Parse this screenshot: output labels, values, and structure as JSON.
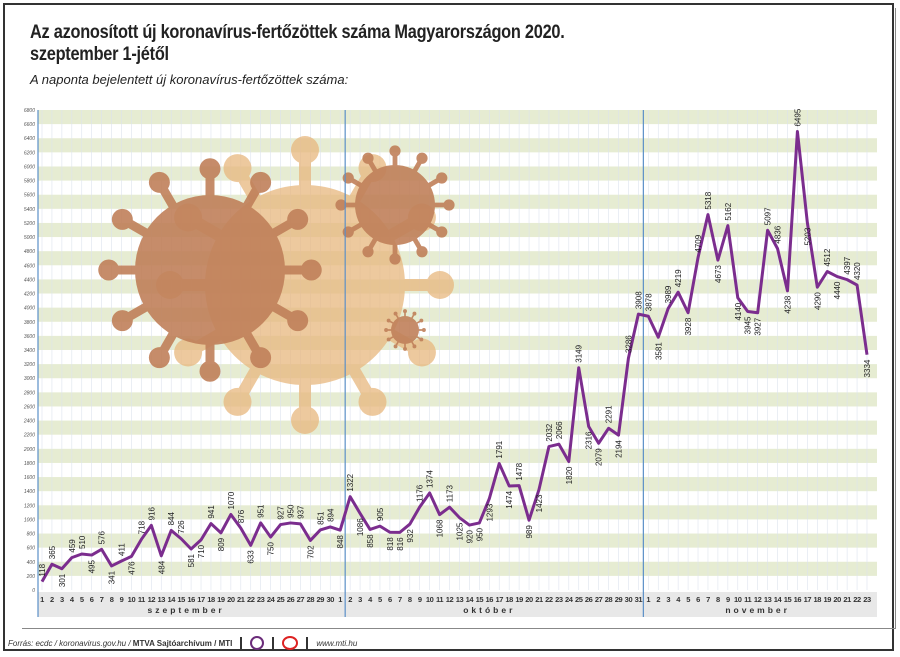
{
  "chart_data": {
    "type": "line",
    "title": "Az azonosított új koronavírus-fertőzöttek száma Magyarországon 2020. szeptember 1-jétől",
    "subtitle": "A naponta bejelentett új koronavírus-fertőzöttek száma:",
    "xlabel": "",
    "ylabel": "",
    "ylim": [
      0,
      6800
    ],
    "ytick_step": 200,
    "grid": true,
    "months": [
      {
        "name": "szeptember",
        "days": 30
      },
      {
        "name": "október",
        "days": 31
      },
      {
        "name": "november",
        "days": 23
      }
    ],
    "series": [
      {
        "name": "Új fertőzöttek",
        "values": [
          118,
          365,
          301,
          459,
          510,
          495,
          576,
          341,
          411,
          476,
          718,
          916,
          484,
          844,
          726,
          581,
          710,
          941,
          809,
          1070,
          876,
          633,
          951,
          750,
          927,
          950,
          937,
          702,
          851,
          894,
          848,
          1322,
          1086,
          858,
          905,
          818,
          816,
          932,
          1176,
          1374,
          1068,
          1173,
          1025,
          920,
          950,
          1293,
          1791,
          1474,
          1478,
          989,
          1423,
          2032,
          2066,
          1820,
          3149,
          2316,
          2079,
          2291,
          2194,
          3286,
          3908,
          3878,
          3581,
          3989,
          4219,
          3928,
          4709,
          5318,
          4673,
          5162,
          4140,
          3945,
          3927,
          5097,
          4836,
          4238,
          6495,
          5203,
          4290,
          4512,
          4440,
          4397,
          4320,
          3334
        ]
      }
    ],
    "colors": {
      "line": "#7b2d8e",
      "band": "#e6ecd2",
      "divider": "#5b8fc7",
      "axis_band": "#e8e8e8"
    }
  },
  "footer": {
    "source": "Forrás: ecdc / koronavirus.gov.hu / ",
    "agency": "MTVA Sajtóarchívum / MTI",
    "url": "www.mti.hu"
  }
}
